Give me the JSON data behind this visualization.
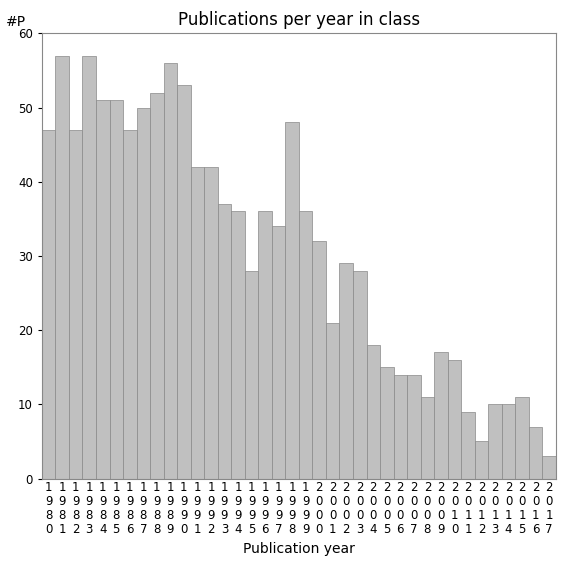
{
  "title": "Publications per year in class",
  "xlabel": "Publication year",
  "ylabel": "#P",
  "categories": [
    "1980",
    "1981",
    "1982",
    "1983",
    "1984",
    "1985",
    "1986",
    "1987",
    "1988",
    "1989",
    "1990",
    "1991",
    "1992",
    "1993",
    "1994",
    "1995",
    "1996",
    "1997",
    "1998",
    "1999",
    "2000",
    "2001",
    "2002",
    "2003",
    "2004",
    "2005",
    "2006",
    "2007",
    "2008",
    "2009",
    "2010",
    "2011",
    "2012",
    "2013",
    "2014",
    "2015",
    "2016",
    "2017"
  ],
  "values": [
    47,
    57,
    47,
    57,
    51,
    51,
    47,
    50,
    52,
    56,
    53,
    42,
    42,
    37,
    36,
    28,
    36,
    34,
    48,
    36,
    32,
    21,
    29,
    28,
    18,
    15,
    14,
    14,
    11,
    17,
    16,
    9,
    5,
    10,
    10,
    11,
    7,
    3
  ],
  "bar_color": "#c0c0c0",
  "bar_edge_color": "#888888",
  "ylim": [
    0,
    60
  ],
  "yticks": [
    0,
    10,
    20,
    30,
    40,
    50,
    60
  ],
  "background_color": "#ffffff",
  "title_fontsize": 12,
  "label_fontsize": 10,
  "tick_fontsize": 8.5
}
